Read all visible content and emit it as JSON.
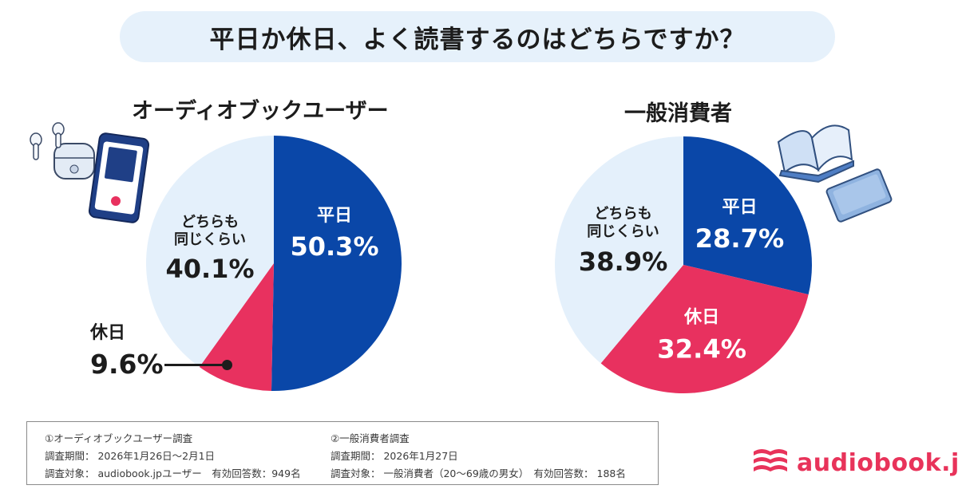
{
  "title": "平日か休日、よく読書するのはどちらですか？",
  "colors": {
    "weekday": "#0a47a8",
    "holiday": "#e8315f",
    "both": "#e4f0fb",
    "brand": "#e8335a",
    "title_bg": "#e6f1fb"
  },
  "chart_data": [
    {
      "type": "pie",
      "title": "オーディオブックユーザー",
      "unit": "%",
      "slices": [
        {
          "label": "平日",
          "value": 50.3,
          "value_text": "50.3%",
          "color": "#0a47a8"
        },
        {
          "label": "休日",
          "value": 9.6,
          "value_text": "9.6%",
          "color": "#e8315f"
        },
        {
          "label": "どちらも同じくらい",
          "label_lines": [
            "どちらも",
            "同じくらい"
          ],
          "value": 40.1,
          "value_text": "40.1%",
          "color": "#e4f0fb"
        }
      ]
    },
    {
      "type": "pie",
      "title": "一般消費者",
      "unit": "%",
      "slices": [
        {
          "label": "平日",
          "value": 28.7,
          "value_text": "28.7%",
          "color": "#0a47a8"
        },
        {
          "label": "休日",
          "value": 32.4,
          "value_text": "32.4%",
          "color": "#e8315f"
        },
        {
          "label": "どちらも同じくらい",
          "label_lines": [
            "どちらも",
            "同じくらい"
          ],
          "value": 38.9,
          "value_text": "38.9%",
          "color": "#e4f0fb"
        }
      ]
    }
  ],
  "notes": {
    "survey1": {
      "name": "①オーディオブックユーザー調査",
      "period": "調査期間： 2026年1月26日〜2月1日",
      "target": "調査対象： audiobook.jpユーザー　有効回答数：949名"
    },
    "survey2": {
      "name": "②一般消費者調査",
      "period": "調査期間： 2026年1月27日",
      "target": "調査対象： 一般消費者（20〜69歳の男女）　有効回答数： 188名"
    }
  },
  "logo": {
    "text": "audiobook.jp"
  }
}
